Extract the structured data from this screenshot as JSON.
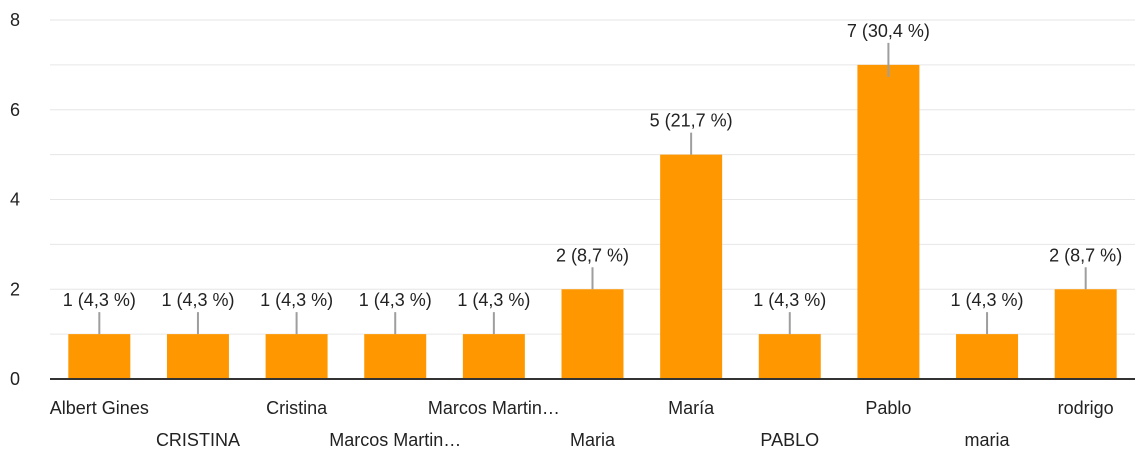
{
  "chart_data": {
    "type": "bar",
    "categories": [
      "Albert Gines",
      "CRISTINA",
      "Cristina",
      "Marcos Martin…",
      "Marcos Martin…",
      "Maria",
      "María",
      "PABLO",
      "Pablo",
      "maria",
      "rodrigo"
    ],
    "values": [
      1,
      1,
      1,
      1,
      1,
      2,
      5,
      1,
      7,
      1,
      2
    ],
    "data_labels": [
      "1 (4,3 %)",
      "1 (4,3 %)",
      "1 (4,3 %)",
      "1 (4,3 %)",
      "1 (4,3 %)",
      "2 (8,7 %)",
      "5 (21,7 %)",
      "1 (4,3 %)",
      "7 (30,4 %)",
      "1 (4,3 %)",
      "2 (8,7 %)"
    ],
    "yticks": [
      0,
      2,
      4,
      6,
      8
    ],
    "ylim": [
      0,
      8
    ],
    "title": "",
    "xlabel": "",
    "ylabel": "",
    "grid": true,
    "bar_color": "#ff9800"
  }
}
